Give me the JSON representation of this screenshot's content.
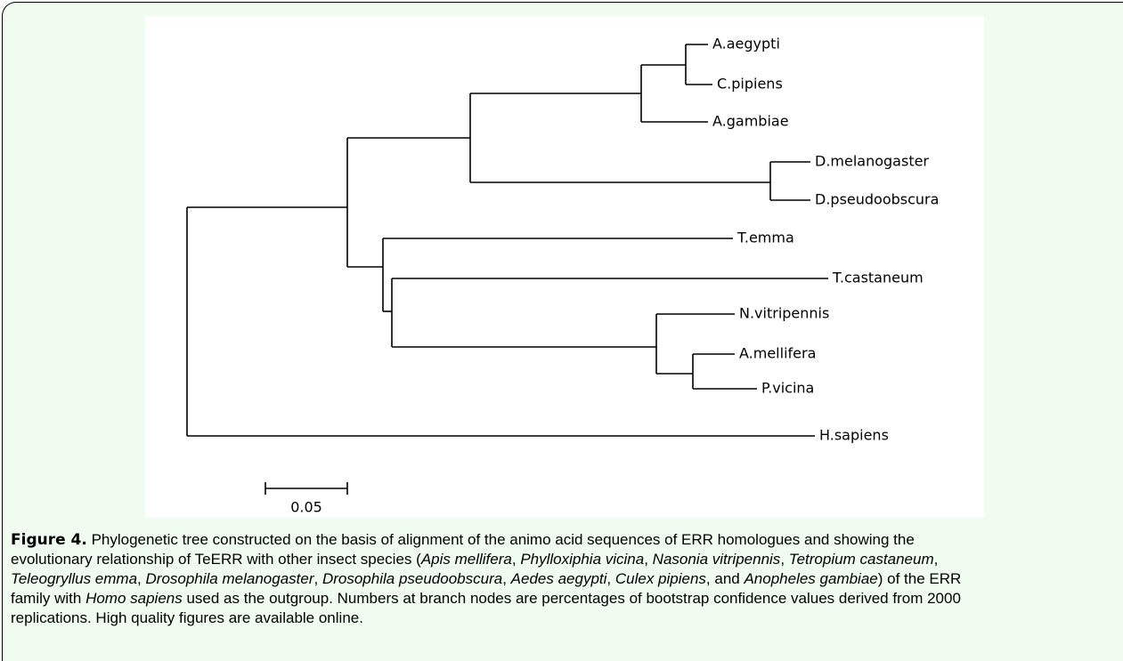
{
  "tree": {
    "leaves": [
      "A.aegypti",
      "C.pipiens",
      "A.gambiae",
      "D.melanogaster",
      "D.pseudoobscura",
      "T.emma",
      "T.castaneum",
      "N.vitripennis",
      "A.mellifera",
      "P.vicina",
      "H.sapiens"
    ],
    "scale_label": "0.05"
  },
  "caption": {
    "label": "Figure 4.",
    "runs": [
      {
        "text": " Phylogenetic tree constructed on the basis of alignment of the animo acid sequences of ERR homologues and showing the evolutionary relationship of TeERR with other insect species ("
      },
      {
        "text": "Apis mellifera",
        "style": "italic"
      },
      {
        "text": ", "
      },
      {
        "text": "Phylloxiphia vicina",
        "style": "italic"
      },
      {
        "text": ", "
      },
      {
        "text": "Nasonia vitripennis",
        "style": "italic"
      },
      {
        "text": ", "
      },
      {
        "text": "Tetropium castaneum",
        "style": "italic"
      },
      {
        "text": ", "
      },
      {
        "text": "Teleogryllus emma",
        "style": "italic"
      },
      {
        "text": ", "
      },
      {
        "text": "Drosophila melanogaster",
        "style": "italic"
      },
      {
        "text": ", "
      },
      {
        "text": "Drosophila pseudoobscura",
        "style": "italic"
      },
      {
        "text": ", "
      },
      {
        "text": "Aedes aegypti",
        "style": "italic"
      },
      {
        "text": ", "
      },
      {
        "text": "Culex pipiens",
        "style": "italic"
      },
      {
        "text": ", and "
      },
      {
        "text": "Anopheles gambiae",
        "style": "italic"
      },
      {
        "text": ") of the ERR family with "
      },
      {
        "text": "Homo sapiens",
        "style": "italic"
      },
      {
        "text": " used as the outgroup. Numbers at branch nodes are percentages of bootstrap confidence values derived from 2000 replications. High quality figures are available online."
      }
    ]
  }
}
